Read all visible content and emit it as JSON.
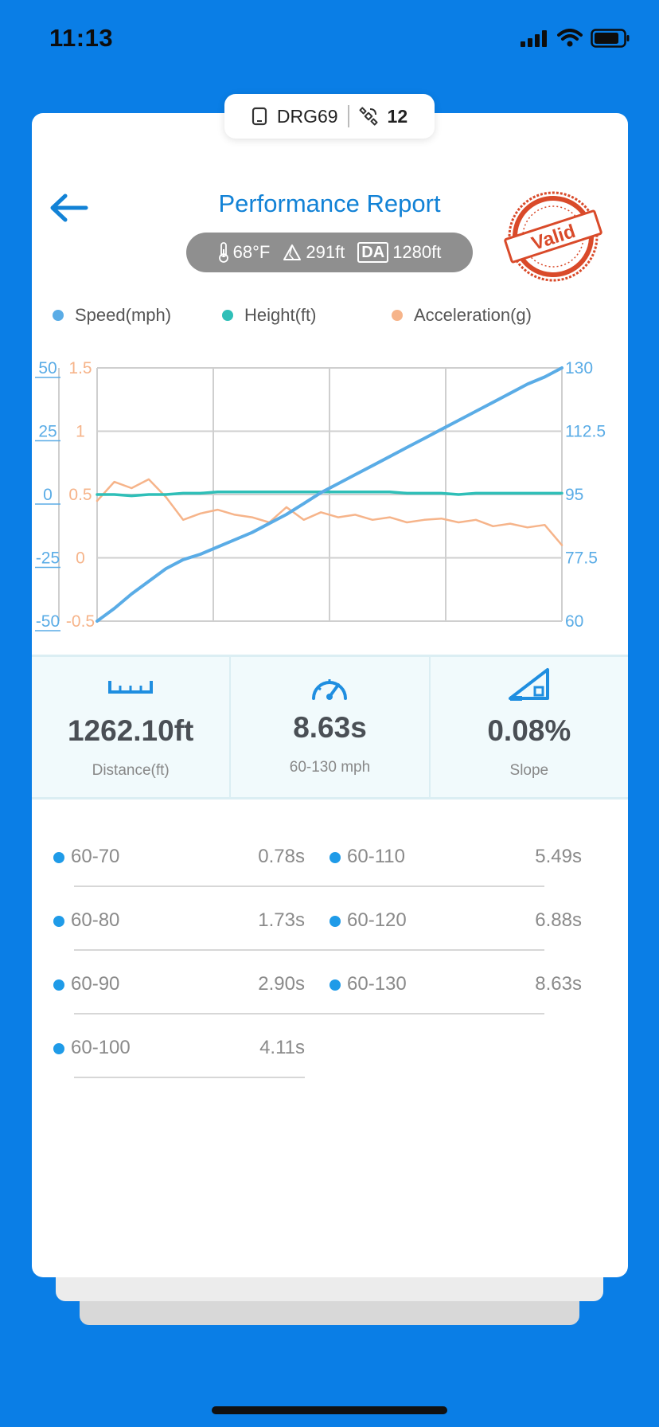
{
  "status_bar": {
    "time": "11:13"
  },
  "device": {
    "name": "DRG69",
    "satellites": "12"
  },
  "header": {
    "title": "Performance Report",
    "stamp_text": "Valid"
  },
  "conditions": {
    "temperature": "68°F",
    "altitude": "291ft",
    "da_label": "DA",
    "density_altitude": "1280ft"
  },
  "legend": {
    "speed": "Speed(mph)",
    "height": "Height(ft)",
    "acceleration": "Acceleration(g)"
  },
  "colors": {
    "speed": "#5aace6",
    "height": "#2fbfb8",
    "acceleration": "#f6b48a",
    "accent": "#1282d6",
    "stamp": "#d94a2a"
  },
  "chart_data": {
    "type": "line",
    "grid": true,
    "axes": {
      "height_ticks": [
        "50",
        "25",
        "0",
        "-25",
        "-50"
      ],
      "acceleration_ticks": [
        "1.5",
        "1",
        "0.5",
        "0",
        "-0.5"
      ],
      "speed_ticks": [
        "130",
        "112.5",
        "95",
        "77.5",
        "60"
      ]
    },
    "series": [
      {
        "name": "Speed(mph)",
        "axis": "right",
        "ylim": [
          60,
          130
        ],
        "values": [
          60,
          63.5,
          67.5,
          71,
          74.5,
          77,
          78.5,
          80.5,
          82.5,
          84.5,
          87,
          89.5,
          92.5,
          95.5,
          98,
          100.5,
          103,
          105.5,
          108,
          110.5,
          113,
          115.5,
          118,
          120.5,
          123,
          125.5,
          127.5,
          130
        ]
      },
      {
        "name": "Height(ft)",
        "axis": "left",
        "ylim": [
          -50,
          50
        ],
        "values": [
          0,
          0,
          -0.5,
          0,
          0,
          0.5,
          0.5,
          1,
          1,
          1,
          1,
          1,
          1,
          1,
          1,
          1,
          1,
          1,
          0.5,
          0.5,
          0.5,
          0,
          0.5,
          0.5,
          0.5,
          0.5,
          0.5,
          0.5
        ]
      },
      {
        "name": "Acceleration(g)",
        "axis": "left-inner",
        "ylim": [
          -0.5,
          1.5
        ],
        "values": [
          0.45,
          0.6,
          0.55,
          0.62,
          0.48,
          0.3,
          0.35,
          0.38,
          0.34,
          0.32,
          0.28,
          0.4,
          0.3,
          0.36,
          0.32,
          0.34,
          0.3,
          0.32,
          0.28,
          0.3,
          0.31,
          0.28,
          0.3,
          0.25,
          0.27,
          0.24,
          0.26,
          0.1
        ]
      }
    ]
  },
  "stats": [
    {
      "value": "1262.10ft",
      "label": "Distance(ft)"
    },
    {
      "value": "8.63s",
      "label": "60-130 mph"
    },
    {
      "value": "0.08%",
      "label": "Slope"
    }
  ],
  "splits": [
    {
      "range": "60-70",
      "time": "0.78s"
    },
    {
      "range": "60-110",
      "time": "5.49s"
    },
    {
      "range": "60-80",
      "time": "1.73s"
    },
    {
      "range": "60-120",
      "time": "6.88s"
    },
    {
      "range": "60-90",
      "time": "2.90s"
    },
    {
      "range": "60-130",
      "time": "8.63s"
    },
    {
      "range": "60-100",
      "time": "4.11s"
    }
  ]
}
